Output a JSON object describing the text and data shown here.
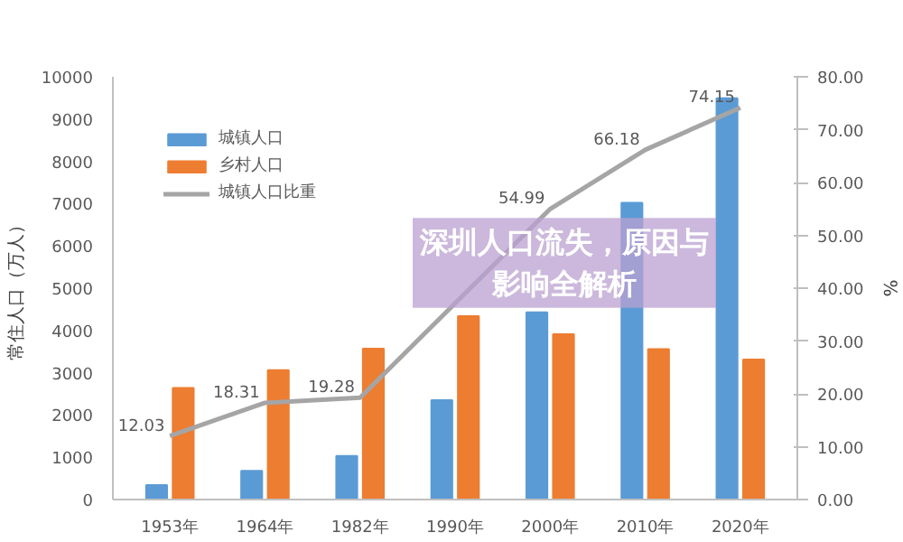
{
  "chart_data": {
    "type": "bar",
    "title": "深圳人口流失，原因与影响全解析",
    "ylabel": "常住人口（万人）",
    "y2label": "%",
    "categories": [
      "1953年",
      "1964年",
      "1982年",
      "1990年",
      "2000年",
      "2010年",
      "2020年"
    ],
    "series": [
      {
        "name": "城镇人口",
        "color": "#5b9bd5",
        "values": [
          340,
          680,
          1030,
          2350,
          4430,
          7020,
          9490
        ]
      },
      {
        "name": "乡村人口",
        "color": "#ed7d31",
        "values": [
          2640,
          3060,
          3570,
          4340,
          3910,
          3560,
          3310
        ]
      },
      {
        "name": "城镇人口比重",
        "type": "line",
        "axis": "y2",
        "color": "#a5a5a5",
        "values": [
          12.03,
          18.31,
          19.28,
          null,
          54.99,
          66.18,
          74.15
        ],
        "value_labels": [
          "12.03",
          "18.31",
          "19.28",
          null,
          "54.99",
          "66.18",
          "74.15"
        ]
      }
    ],
    "ylim": [
      0,
      10000
    ],
    "yticks": [
      0,
      1000,
      2000,
      3000,
      4000,
      5000,
      6000,
      7000,
      8000,
      9000,
      10000
    ],
    "y2lim": [
      0,
      80
    ],
    "y2ticks": [
      {
        "value": 0,
        "label": "0.00"
      },
      {
        "value": 10,
        "label": "10.00"
      },
      {
        "value": 20,
        "label": "20.00"
      },
      {
        "value": 30,
        "label": "30.00"
      },
      {
        "value": 40,
        "label": "40.00"
      },
      {
        "value": 50,
        "label": "50.00"
      },
      {
        "value": 60,
        "label": "60.00"
      },
      {
        "value": 70,
        "label": "70.00"
      },
      {
        "value": 80,
        "label": "80.00"
      }
    ],
    "legend": "top left",
    "grid": false
  }
}
